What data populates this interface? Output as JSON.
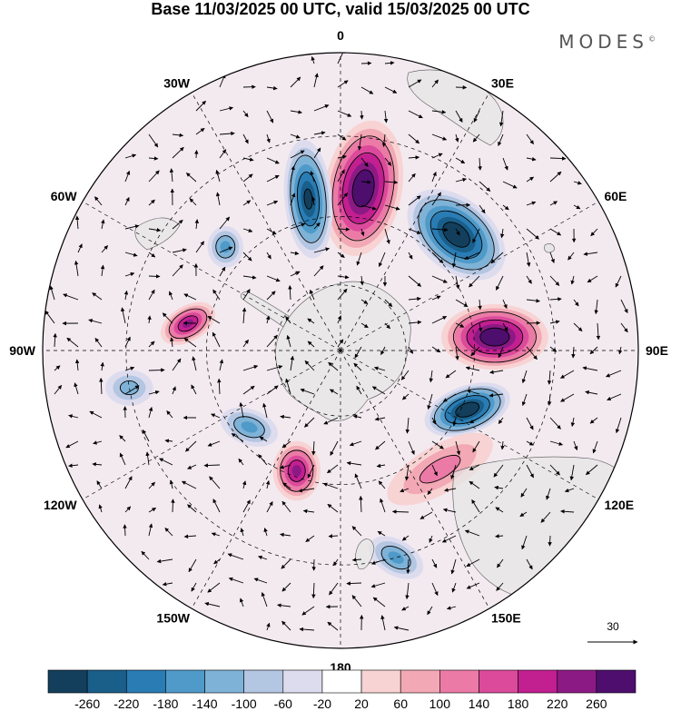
{
  "title": "Base 11/03/2025 00 UTC, valid 15/03/2025 00 UTC",
  "logo": "MODES",
  "logo_mark": "©",
  "longitude_labels": [
    {
      "text": "0",
      "lon": 0
    },
    {
      "text": "30E",
      "lon": 30
    },
    {
      "text": "60E",
      "lon": 60
    },
    {
      "text": "90E",
      "lon": 90
    },
    {
      "text": "120E",
      "lon": 120
    },
    {
      "text": "150E",
      "lon": 150
    },
    {
      "text": "180",
      "lon": 180
    },
    {
      "text": "150W",
      "lon": -150
    },
    {
      "text": "120W",
      "lon": -120
    },
    {
      "text": "90W",
      "lon": -90
    },
    {
      "text": "60W",
      "lon": -60
    },
    {
      "text": "30W",
      "lon": -30
    }
  ],
  "reference_vector": {
    "label": "30"
  },
  "colorbar": {
    "ticks": [
      "-260",
      "-220",
      "-180",
      "-140",
      "-100",
      "-60",
      "-20",
      "20",
      "60",
      "100",
      "140",
      "180",
      "220",
      "260"
    ],
    "colors": [
      "#133f5c",
      "#1a5e8a",
      "#2a7cb4",
      "#4f9ac9",
      "#7fb2d7",
      "#b3c6e2",
      "#dddcee",
      "#ffffff",
      "#f8d3d3",
      "#f2a9b5",
      "#eb7aa6",
      "#dc4a9c",
      "#c21f91",
      "#8c1a85",
      "#4d0e6e"
    ]
  },
  "colors": {
    "land": "#e6e6e6",
    "frame": "#000000",
    "grid": "#000000"
  },
  "anomalies": [
    {
      "lon": 8,
      "r": 0.55,
      "rx": 0.13,
      "ry": 0.23,
      "rot": 10,
      "level": 14,
      "name": "positive-center-0e"
    },
    {
      "lon": 45,
      "r": 0.55,
      "rx": 0.19,
      "ry": 0.12,
      "rot": 40,
      "level": 0,
      "name": "negative-center-45e"
    },
    {
      "lon": 85,
      "r": 0.52,
      "rx": 0.18,
      "ry": 0.11,
      "rot": 0,
      "level": 14,
      "name": "positive-center-90e"
    },
    {
      "lon": 115,
      "r": 0.47,
      "rx": 0.15,
      "ry": 0.08,
      "rot": -20,
      "level": 0,
      "name": "negative-center-115e"
    },
    {
      "lon": -12,
      "r": 0.52,
      "rx": 0.08,
      "ry": 0.2,
      "rot": -5,
      "level": 1,
      "name": "negative-center-15w"
    },
    {
      "lon": -80,
      "r": 0.52,
      "rx": 0.1,
      "ry": 0.06,
      "rot": -30,
      "level": 12,
      "name": "positive-center-75w"
    },
    {
      "lon": -48,
      "r": 0.52,
      "rx": 0.06,
      "ry": 0.07,
      "rot": 0,
      "level": 4,
      "name": "negative-center-50w"
    },
    {
      "lon": -160,
      "r": 0.43,
      "rx": 0.08,
      "ry": 0.1,
      "rot": 0,
      "level": 12,
      "name": "positive-center-160w"
    },
    {
      "lon": -130,
      "r": 0.4,
      "rx": 0.1,
      "ry": 0.06,
      "rot": 20,
      "level": 4,
      "name": "negative-center-130w"
    },
    {
      "lon": 165,
      "r": 0.72,
      "rx": 0.1,
      "ry": 0.06,
      "rot": 30,
      "level": 4,
      "name": "negative-center-165e"
    },
    {
      "lon": 140,
      "r": 0.52,
      "rx": 0.2,
      "ry": 0.08,
      "rot": -30,
      "level": 9,
      "name": "positive-center-140e"
    },
    {
      "lon": -100,
      "r": 0.72,
      "rx": 0.08,
      "ry": 0.06,
      "rot": 0,
      "level": 5,
      "name": "negative-center-100w"
    }
  ]
}
